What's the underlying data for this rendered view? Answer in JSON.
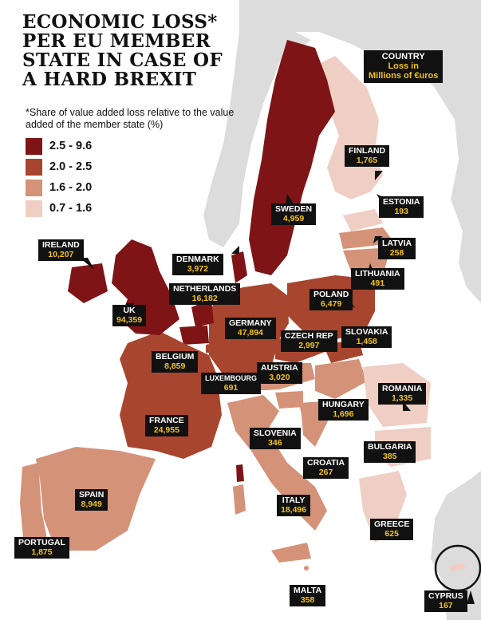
{
  "title_lines": [
    "ECONOMIC LOSS*",
    "PER EU MEMBER",
    "STATE IN CASE OF",
    "A HARD BREXIT"
  ],
  "note": "*Share of value added loss relative to the value added of the member state (%)",
  "legend": [
    {
      "label": "2.5 - 9.6",
      "color": "#7e1416"
    },
    {
      "label": "2.0 - 2.5",
      "color": "#a8452e"
    },
    {
      "label": "1.6 - 2.0",
      "color": "#d49278"
    },
    {
      "label": "0.7 - 1.6",
      "color": "#efcfc3"
    }
  ],
  "key": {
    "line1": "COUNTRY",
    "line2": "Loss in",
    "line3": "Millions of €uros"
  },
  "colors": {
    "sea": "#ffffff",
    "non_eu_land": "#dcdcdc",
    "label_bg": "#111111",
    "value_text": "#f3c316"
  },
  "countries": [
    {
      "name": "IRELAND",
      "value": "10,207"
    },
    {
      "name": "UK",
      "value": "94,359"
    },
    {
      "name": "DENMARK",
      "value": "3,972"
    },
    {
      "name": "NETHERLANDS",
      "value": "16,182"
    },
    {
      "name": "BELGIUM",
      "value": "8,859"
    },
    {
      "name": "LUXEMBOURG",
      "value": "691"
    },
    {
      "name": "GERMANY",
      "value": "47,894"
    },
    {
      "name": "FRANCE",
      "value": "24,955"
    },
    {
      "name": "SPAIN",
      "value": "8,949"
    },
    {
      "name": "PORTUGAL",
      "value": "1,875"
    },
    {
      "name": "SWEDEN",
      "value": "4,959"
    },
    {
      "name": "FINLAND",
      "value": "1,765"
    },
    {
      "name": "ESTONIA",
      "value": "193"
    },
    {
      "name": "LATVIA",
      "value": "258"
    },
    {
      "name": "LITHUANIA",
      "value": "491"
    },
    {
      "name": "POLAND",
      "value": "6,479"
    },
    {
      "name": "CZECH REP",
      "value": "2,997"
    },
    {
      "name": "SLOVAKIA",
      "value": "1,458"
    },
    {
      "name": "AUSTRIA",
      "value": "3,020"
    },
    {
      "name": "HUNGARY",
      "value": "1,696"
    },
    {
      "name": "ROMANIA",
      "value": "1,335"
    },
    {
      "name": "SLOVENIA",
      "value": "346"
    },
    {
      "name": "CROATIA",
      "value": "267"
    },
    {
      "name": "BULGARIA",
      "value": "385"
    },
    {
      "name": "ITALY",
      "value": "18,496"
    },
    {
      "name": "GREECE",
      "value": "625"
    },
    {
      "name": "MALTA",
      "value": "358"
    },
    {
      "name": "CYPRUS",
      "value": "167"
    }
  ]
}
